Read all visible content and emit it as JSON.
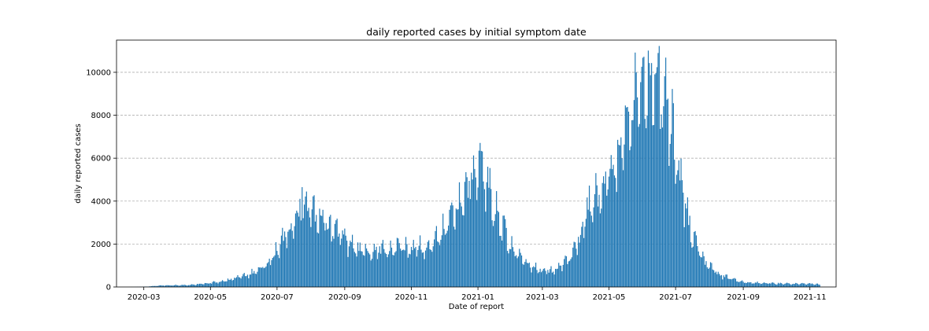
{
  "chart_data": {
    "type": "bar",
    "title": "daily reported cases by initial symptom date",
    "xlabel": "Date of report",
    "ylabel": "daily reported cases",
    "xlim": [
      "2020-02-05",
      "2021-11-25"
    ],
    "ylim": [
      0,
      11500
    ],
    "grid": "y-dashed",
    "bar_color": "#1f77b4",
    "x_ticks": [
      "2020-03",
      "2020-05",
      "2020-07",
      "2020-09",
      "2020-11",
      "2021-01",
      "2021-03",
      "2021-05",
      "2021-07",
      "2021-09",
      "2021-11"
    ],
    "y_ticks": [
      0,
      2000,
      4000,
      6000,
      8000,
      10000
    ],
    "series_start": "2020-02-15",
    "series_end": "2021-11-10",
    "weekly_trend": [
      [
        "2020-02-15",
        0
      ],
      [
        "2020-02-29",
        10
      ],
      [
        "2020-03-07",
        30
      ],
      [
        "2020-03-14",
        60
      ],
      [
        "2020-03-28",
        80
      ],
      [
        "2020-04-11",
        90
      ],
      [
        "2020-04-25",
        150
      ],
      [
        "2020-05-09",
        250
      ],
      [
        "2020-05-23",
        400
      ],
      [
        "2020-06-06",
        600
      ],
      [
        "2020-06-20",
        1000
      ],
      [
        "2020-07-04",
        1900
      ],
      [
        "2020-07-11",
        2600
      ],
      [
        "2020-07-18",
        3200
      ],
      [
        "2020-07-25",
        3700
      ],
      [
        "2020-08-01",
        3500
      ],
      [
        "2020-08-08",
        3200
      ],
      [
        "2020-08-15",
        3000
      ],
      [
        "2020-08-22",
        2700
      ],
      [
        "2020-08-29",
        2300
      ],
      [
        "2020-09-05",
        2000
      ],
      [
        "2020-09-12",
        1800
      ],
      [
        "2020-09-19",
        1650
      ],
      [
        "2020-09-26",
        1700
      ],
      [
        "2020-10-03",
        1750
      ],
      [
        "2020-10-10",
        1700
      ],
      [
        "2020-10-24",
        1800
      ],
      [
        "2020-11-07",
        1850
      ],
      [
        "2020-11-14",
        1800
      ],
      [
        "2020-11-21",
        2100
      ],
      [
        "2020-11-28",
        2500
      ],
      [
        "2020-12-05",
        3000
      ],
      [
        "2020-12-12",
        3700
      ],
      [
        "2020-12-19",
        4300
      ],
      [
        "2020-12-26",
        5200
      ],
      [
        "2021-01-02",
        5600
      ],
      [
        "2021-01-09",
        5200
      ],
      [
        "2021-01-16",
        3800
      ],
      [
        "2021-01-23",
        2800
      ],
      [
        "2021-01-30",
        2000
      ],
      [
        "2021-02-06",
        1600
      ],
      [
        "2021-02-13",
        1200
      ],
      [
        "2021-02-20",
        1000
      ],
      [
        "2021-02-27",
        800
      ],
      [
        "2021-03-06",
        750
      ],
      [
        "2021-03-13",
        800
      ],
      [
        "2021-03-20",
        1000
      ],
      [
        "2021-03-27",
        1400
      ],
      [
        "2021-04-03",
        2200
      ],
      [
        "2021-04-10",
        3300
      ],
      [
        "2021-04-17",
        4100
      ],
      [
        "2021-04-24",
        4500
      ],
      [
        "2021-05-01",
        5000
      ],
      [
        "2021-05-08",
        5800
      ],
      [
        "2021-05-15",
        6800
      ],
      [
        "2021-05-22",
        8000
      ],
      [
        "2021-05-29",
        9000
      ],
      [
        "2021-06-05",
        9600
      ],
      [
        "2021-06-12",
        10000
      ],
      [
        "2021-06-19",
        9700
      ],
      [
        "2021-06-26",
        8300
      ],
      [
        "2021-07-03",
        5800
      ],
      [
        "2021-07-10",
        3700
      ],
      [
        "2021-07-17",
        2300
      ],
      [
        "2021-07-24",
        1500
      ],
      [
        "2021-07-31",
        1000
      ],
      [
        "2021-08-07",
        700
      ],
      [
        "2021-08-14",
        500
      ],
      [
        "2021-08-21",
        380
      ],
      [
        "2021-08-28",
        280
      ],
      [
        "2021-09-04",
        230
      ],
      [
        "2021-09-18",
        180
      ],
      [
        "2021-10-02",
        160
      ],
      [
        "2021-10-16",
        150
      ],
      [
        "2021-10-30",
        150
      ],
      [
        "2021-11-10",
        120
      ]
    ],
    "peaks": [
      {
        "date": "2020-07-24",
        "value": 4650
      },
      {
        "date": "2021-01-02",
        "value": 6350
      },
      {
        "date": "2021-06-15",
        "value": 10900
      }
    ]
  }
}
